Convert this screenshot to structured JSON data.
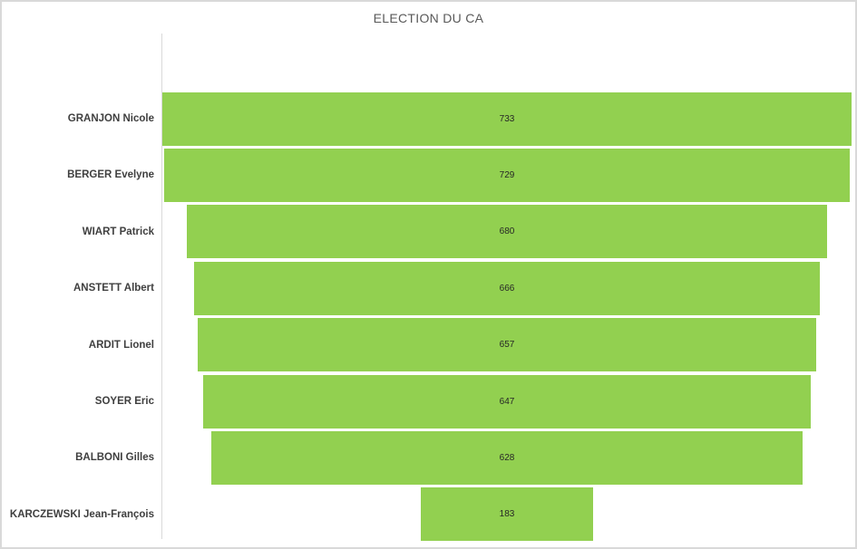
{
  "chart_data": {
    "type": "bar",
    "subtype": "funnel-centered-horizontal-bars",
    "title": "ELECTION DU CA",
    "categories": [
      "GRANJON Nicole",
      "BERGER Evelyne",
      "WIART Patrick",
      "ANSTETT Albert",
      "ARDIT Lionel",
      "SOYER Eric",
      "BALBONI Gilles",
      "KARCZEWSKI Jean-François"
    ],
    "values": [
      733,
      729,
      680,
      666,
      657,
      647,
      628,
      183
    ],
    "xlabel": "",
    "ylabel": "",
    "legend": "none",
    "grid": false,
    "value_labels": "centered-inside-bars",
    "axis_max_reference": 733
  },
  "colors": {
    "bar": "#92D050",
    "title_text": "#595959",
    "category_text": "#3F3F3F",
    "value_text": "#262626",
    "axis_line": "#D9D9D9",
    "border": "#D9D9D9",
    "background": "#FFFFFF"
  }
}
